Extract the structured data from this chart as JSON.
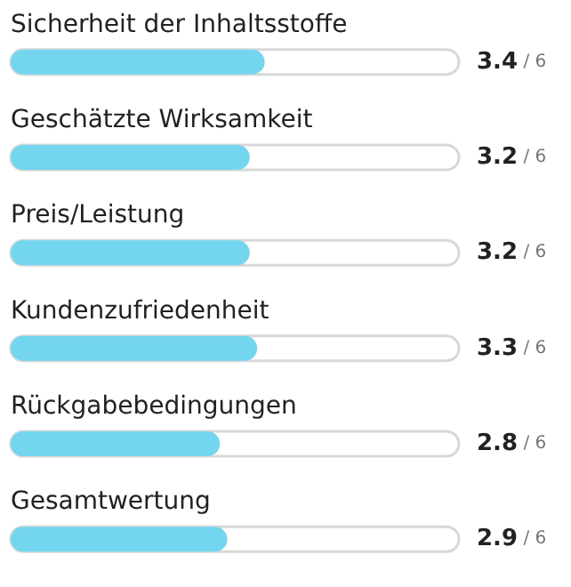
{
  "chart_data": {
    "type": "bar",
    "orientation": "horizontal",
    "categories": [
      "Sicherheit der Inhaltsstoffe",
      "Geschätzte Wirksamkeit",
      "Preis/Leistung",
      "Kundenzufriedenheit",
      "Rückgabebedingungen",
      "Gesamtwertung"
    ],
    "values": [
      3.4,
      3.2,
      3.2,
      3.3,
      2.8,
      2.9
    ],
    "data_labels": true,
    "color": "#74d6ee",
    "xlim": [
      0,
      6
    ],
    "annotations": [
      "/ 6"
    ]
  }
}
